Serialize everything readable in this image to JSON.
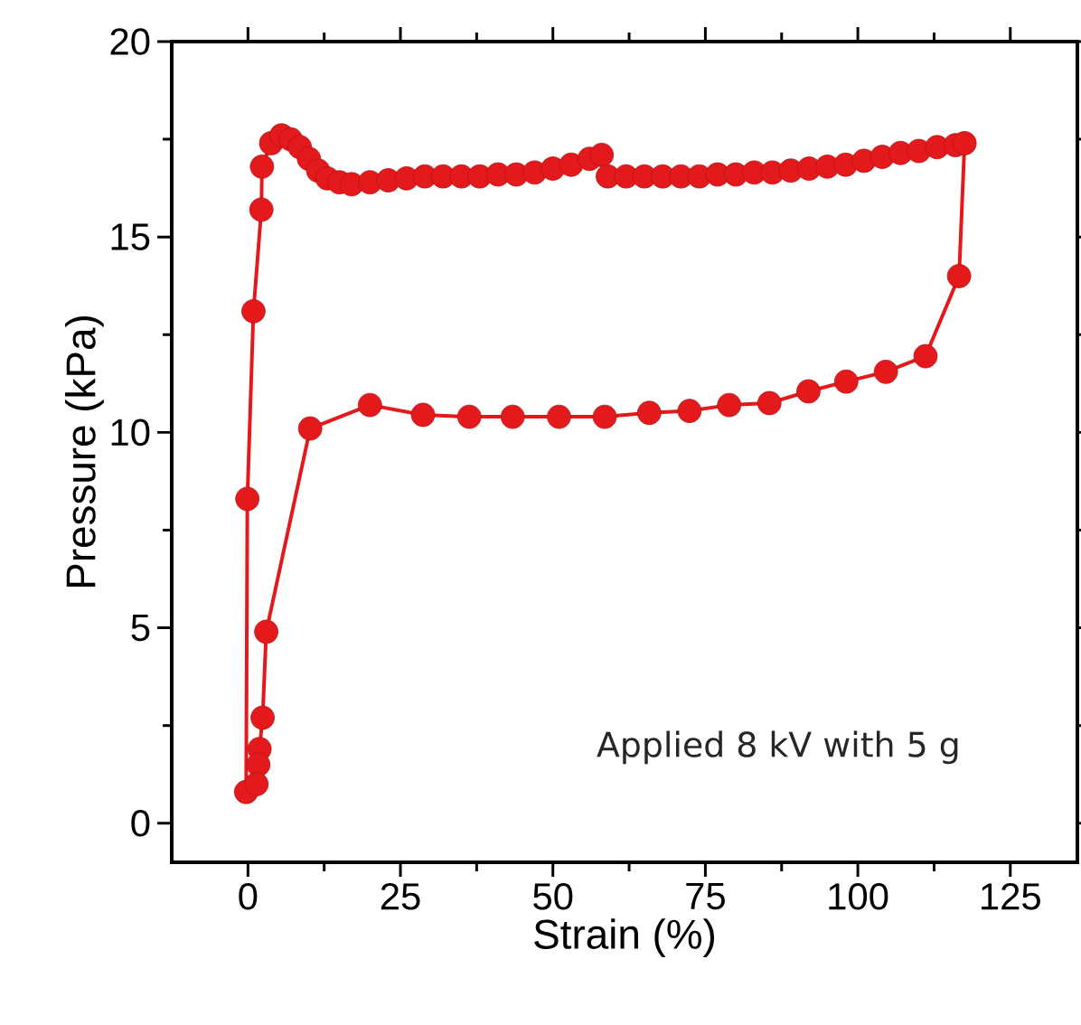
{
  "chart_data": {
    "type": "line",
    "xlabel": "Strain (%)",
    "ylabel": "Pressure (kPa)",
    "x": [
      -0.3,
      -0.1,
      0.9,
      2.2,
      2.3,
      3.8,
      5.5,
      7,
      8.5,
      10,
      11.5,
      13,
      15,
      17,
      20,
      23,
      26,
      29,
      32,
      35,
      38,
      41,
      44,
      47,
      50,
      53,
      56,
      58,
      59,
      62,
      65,
      68,
      71,
      74,
      77,
      80,
      83,
      86,
      89,
      92,
      95,
      98,
      101,
      104,
      107,
      110,
      113,
      116,
      117.5,
      116.6,
      111.1,
      104.6,
      98.1,
      91.9,
      85.5,
      78.9,
      72.4,
      65.8,
      58.5,
      51,
      43.4,
      36.3,
      28.7,
      20,
      10.2,
      3,
      2.4,
      1.9,
      1.7,
      1.4
    ],
    "values": [
      0.8,
      8.3,
      13.1,
      15.7,
      16.8,
      17.4,
      17.6,
      17.5,
      17.3,
      17.0,
      16.7,
      16.5,
      16.4,
      16.35,
      16.4,
      16.45,
      16.5,
      16.55,
      16.55,
      16.55,
      16.55,
      16.6,
      16.6,
      16.65,
      16.75,
      16.85,
      17.0,
      17.1,
      16.55,
      16.55,
      16.55,
      16.55,
      16.55,
      16.55,
      16.6,
      16.6,
      16.65,
      16.65,
      16.7,
      16.75,
      16.8,
      16.85,
      16.95,
      17.05,
      17.15,
      17.2,
      17.3,
      17.35,
      17.4,
      14.0,
      11.95,
      11.55,
      11.3,
      11.05,
      10.75,
      10.7,
      10.55,
      10.5,
      10.4,
      10.4,
      10.4,
      10.4,
      10.45,
      10.7,
      10.1,
      4.9,
      2.7,
      1.9,
      1.5,
      1.0
    ],
    "color": "#e3191c",
    "marker": "circle",
    "line_style": "solid",
    "xlim": [
      -12.5,
      136
    ],
    "ylim": [
      -1,
      20
    ],
    "xticks": [
      0,
      25,
      50,
      75,
      100,
      125
    ],
    "yticks": [
      0,
      5,
      10,
      15,
      20
    ],
    "annotations": [
      "Applied 8 kV with 5 g"
    ]
  }
}
